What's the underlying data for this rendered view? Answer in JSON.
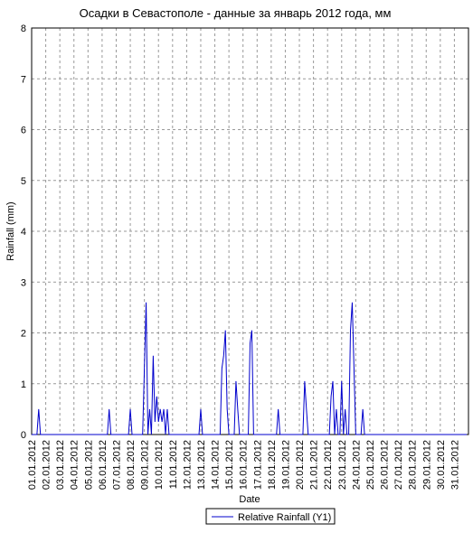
{
  "chart_data": {
    "type": "line",
    "title": "Осадки в Севастополе - данные за январь 2012 года, мм",
    "x_label": "Date",
    "y_label": "Rainfall (mm)",
    "x": [
      1,
      1.375,
      1.5,
      1.625,
      6.375,
      6.5,
      6.625,
      7.875,
      8.0,
      8.125,
      8.875,
      9.0,
      9.125,
      9.25,
      9.375,
      9.5,
      9.625,
      9.75,
      9.875,
      10.0,
      10.125,
      10.25,
      10.375,
      10.5,
      10.625,
      10.75,
      12.875,
      13.0,
      13.125,
      14.375,
      14.5,
      14.625,
      14.75,
      14.875,
      15.0,
      15.375,
      15.5,
      15.625,
      15.75,
      16.375,
      16.5,
      16.625,
      16.75,
      18.375,
      18.5,
      18.625,
      20.25,
      20.375,
      20.5,
      20.625,
      22.125,
      22.25,
      22.375,
      22.5,
      22.625,
      22.75,
      22.875,
      23.0,
      23.125,
      23.25,
      23.375,
      23.5,
      23.625,
      23.75,
      23.875,
      24.0,
      24.375,
      24.5,
      24.625,
      31.875
    ],
    "series": [
      {
        "name": "Relative Rainfall (Y1)",
        "color": "#0000cc",
        "values": [
          0,
          0,
          0.5,
          0,
          0,
          0.5,
          0,
          0,
          0.5,
          0,
          0,
          1.3,
          2.6,
          0,
          0.5,
          0,
          1.55,
          0.25,
          0.75,
          0.25,
          0.5,
          0.25,
          0.5,
          0,
          0.5,
          0,
          0,
          0.5,
          0,
          0,
          1.3,
          1.55,
          2.05,
          0.5,
          0,
          0,
          1.05,
          0.5,
          0,
          0,
          1.8,
          2.05,
          0,
          0,
          0.5,
          0,
          0,
          1.05,
          0.5,
          0,
          0,
          0.75,
          1.05,
          0,
          0.5,
          0,
          0,
          1.05,
          0,
          0.5,
          0,
          0,
          2.05,
          2.6,
          1.3,
          0,
          0,
          0.5,
          0,
          0
        ]
      }
    ],
    "xlim": [
      1,
      32
    ],
    "xticks": [
      {
        "value": 1,
        "label": "01.01.2012"
      },
      {
        "value": 2,
        "label": "02.01.2012"
      },
      {
        "value": 3,
        "label": "03.01.2012"
      },
      {
        "value": 4,
        "label": "04.01.2012"
      },
      {
        "value": 5,
        "label": "05.01.2012"
      },
      {
        "value": 6,
        "label": "06.01.2012"
      },
      {
        "value": 7,
        "label": "07.01.2012"
      },
      {
        "value": 8,
        "label": "08.01.2012"
      },
      {
        "value": 9,
        "label": "09.01.2012"
      },
      {
        "value": 10,
        "label": "10.01.2012"
      },
      {
        "value": 11,
        "label": "11.01.2012"
      },
      {
        "value": 12,
        "label": "12.01.2012"
      },
      {
        "value": 13,
        "label": "13.01.2012"
      },
      {
        "value": 14,
        "label": "14.01.2012"
      },
      {
        "value": 15,
        "label": "15.01.2012"
      },
      {
        "value": 16,
        "label": "16.01.2012"
      },
      {
        "value": 17,
        "label": "17.01.2012"
      },
      {
        "value": 18,
        "label": "18.01.2012"
      },
      {
        "value": 19,
        "label": "19.01.2012"
      },
      {
        "value": 20,
        "label": "20.01.2012"
      },
      {
        "value": 21,
        "label": "21.01.2012"
      },
      {
        "value": 22,
        "label": "22.01.2012"
      },
      {
        "value": 23,
        "label": "23.01.2012"
      },
      {
        "value": 24,
        "label": "24.01.2012"
      },
      {
        "value": 25,
        "label": "25.01.2012"
      },
      {
        "value": 26,
        "label": "26.01.2012"
      },
      {
        "value": 27,
        "label": "27.01.2012"
      },
      {
        "value": 28,
        "label": "28.01.2012"
      },
      {
        "value": 29,
        "label": "29.01.2012"
      },
      {
        "value": 30,
        "label": "30.01.2012"
      },
      {
        "value": 31,
        "label": "31.01.2012"
      }
    ],
    "ylim": [
      0,
      8
    ],
    "yticks": [
      0,
      1,
      2,
      3,
      4,
      5,
      6,
      7,
      8
    ],
    "grid": true
  }
}
